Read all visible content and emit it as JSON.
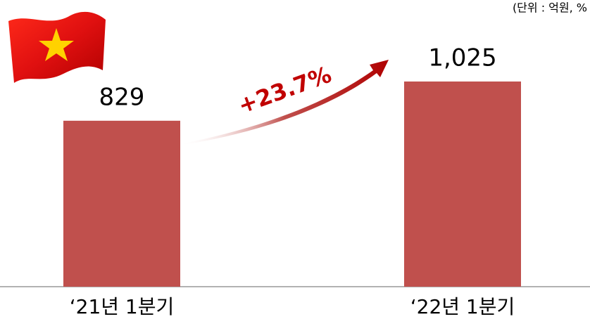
{
  "chart_data": {
    "type": "bar",
    "unit": "(단위 : 억원, %",
    "annotation": "+23.7%",
    "categories": [
      "‘21년 1분기",
      "‘22년 1분기"
    ],
    "values": [
      829,
      1025
    ],
    "value_labels": [
      "829",
      "1,025"
    ],
    "color": "#c0504d"
  }
}
